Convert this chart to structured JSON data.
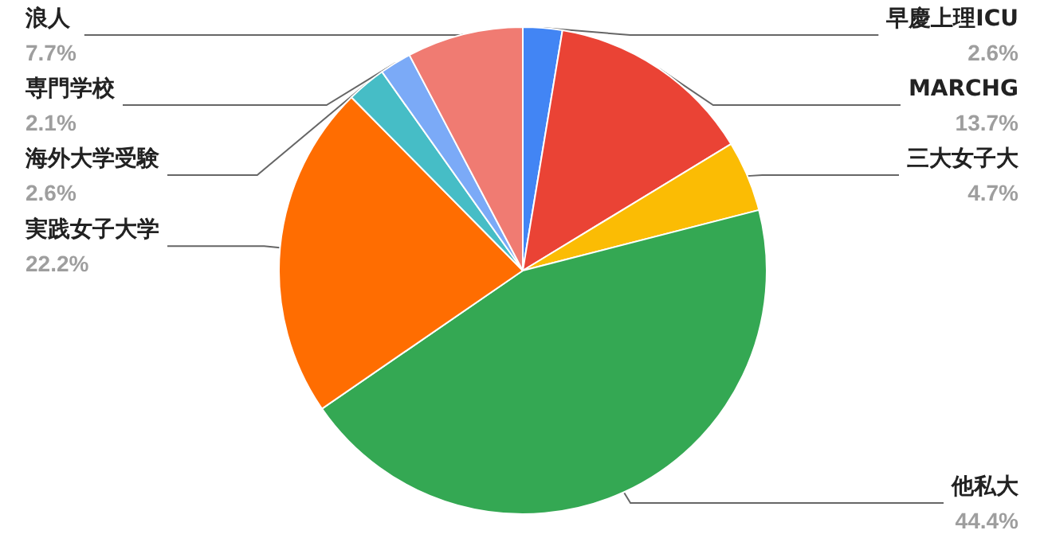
{
  "chart_data": {
    "type": "pie",
    "categories": [
      "早慶上理ICU",
      "MARCHG",
      "三大女子大",
      "他私大",
      "実践女子大学",
      "海外大学受験",
      "専門学校",
      "浪人"
    ],
    "values": [
      2.6,
      13.7,
      4.7,
      44.4,
      22.2,
      2.6,
      2.1,
      7.7
    ],
    "value_labels": [
      "2.6%",
      "13.7%",
      "4.7%",
      "44.4%",
      "22.2%",
      "2.6%",
      "2.1%",
      "7.7%"
    ],
    "colors": [
      "#4285f4",
      "#ea4335",
      "#fbbc04",
      "#34a853",
      "#ff6d01",
      "#46bdc6",
      "#7baaf7",
      "#f07b72"
    ],
    "legend": false
  }
}
